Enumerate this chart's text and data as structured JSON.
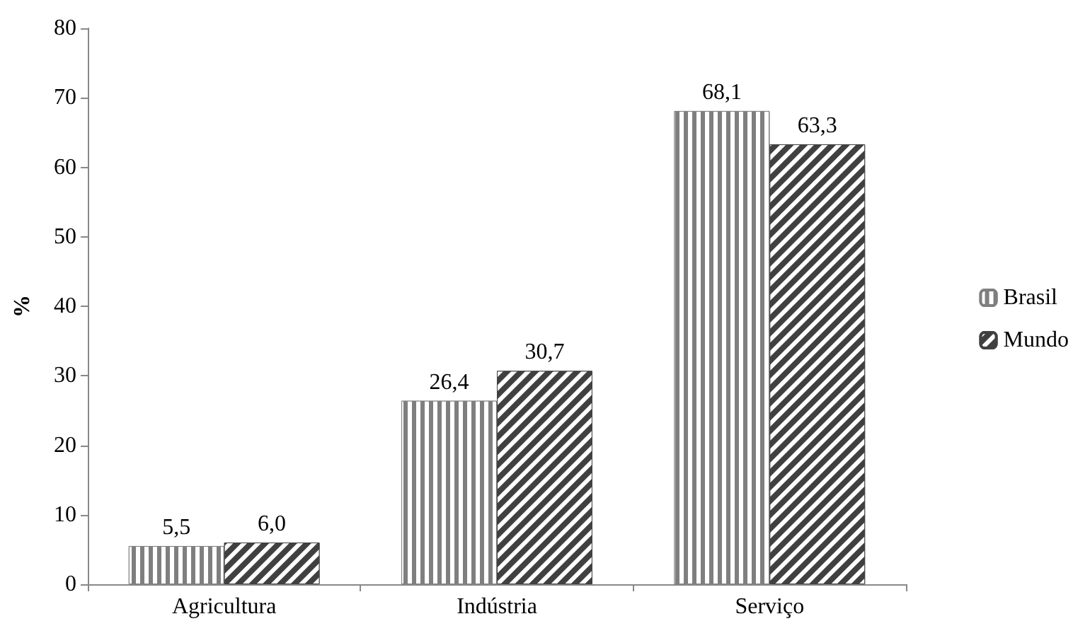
{
  "chart_data": {
    "type": "bar",
    "ylabel": "%",
    "categories": [
      "Agricultura",
      "Indústria",
      "Serviço"
    ],
    "series": [
      {
        "name": "Brasil",
        "color": "#7f7f7f",
        "values": [
          5.5,
          26.4,
          68.1
        ],
        "value_labels": [
          "5,5",
          "26,4",
          "68,1"
        ]
      },
      {
        "name": "Mundo",
        "color": "#404040",
        "values": [
          6.0,
          30.7,
          63.3
        ],
        "value_labels": [
          "6,0",
          "30,7",
          "63,3"
        ]
      }
    ],
    "ylim": [
      0,
      80
    ],
    "yticks": [
      0,
      10,
      20,
      30,
      40,
      50,
      60,
      70,
      80
    ],
    "grid": false,
    "legend": "right"
  }
}
